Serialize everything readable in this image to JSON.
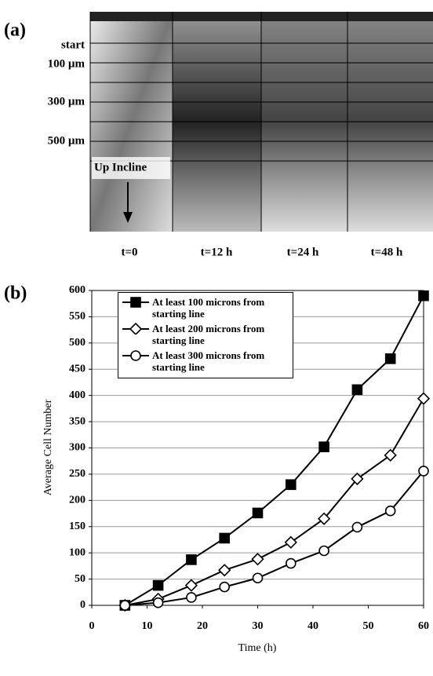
{
  "panel_a": {
    "label": "(a)",
    "row_labels": [
      "start",
      "100 µm",
      "300 µm",
      "500 µm"
    ],
    "annotation": "Up Incline",
    "column_labels": [
      "t=0",
      "t=12 h",
      "t=24 h",
      "t=48 h"
    ]
  },
  "chart_data": {
    "type": "line",
    "label": "(b)",
    "x_label": "Time (h)",
    "y_label": "Average Cell Number",
    "x": [
      6,
      12,
      18,
      24,
      30,
      36,
      42,
      48,
      54,
      60
    ],
    "series": [
      {
        "name": "At least 100 microns from starting line",
        "color": "#000000",
        "marker": "square",
        "marker_fill": "#000000",
        "values": [
          0,
          38,
          87,
          128,
          176,
          230,
          302,
          411,
          470,
          590
        ]
      },
      {
        "name": "At least 200 microns from starting line",
        "color": "#000000",
        "marker": "diamond",
        "marker_fill": "#ffffff",
        "values": [
          0,
          12,
          38,
          67,
          88,
          120,
          165,
          241,
          286,
          394
        ]
      },
      {
        "name": "At least 300 microns from starting line",
        "color": "#000000",
        "marker": "circle",
        "marker_fill": "#ffffff",
        "values": [
          0,
          5,
          15,
          35,
          52,
          80,
          104,
          149,
          180,
          256
        ]
      }
    ],
    "xlim": [
      0,
      60
    ],
    "xticks": [
      0,
      10,
      20,
      30,
      40,
      50,
      60
    ],
    "ylim": [
      0,
      600
    ],
    "yticks": [
      0,
      50,
      100,
      150,
      200,
      250,
      300,
      350,
      400,
      450,
      500,
      550,
      600
    ],
    "grid": true,
    "legend": "upper left"
  }
}
